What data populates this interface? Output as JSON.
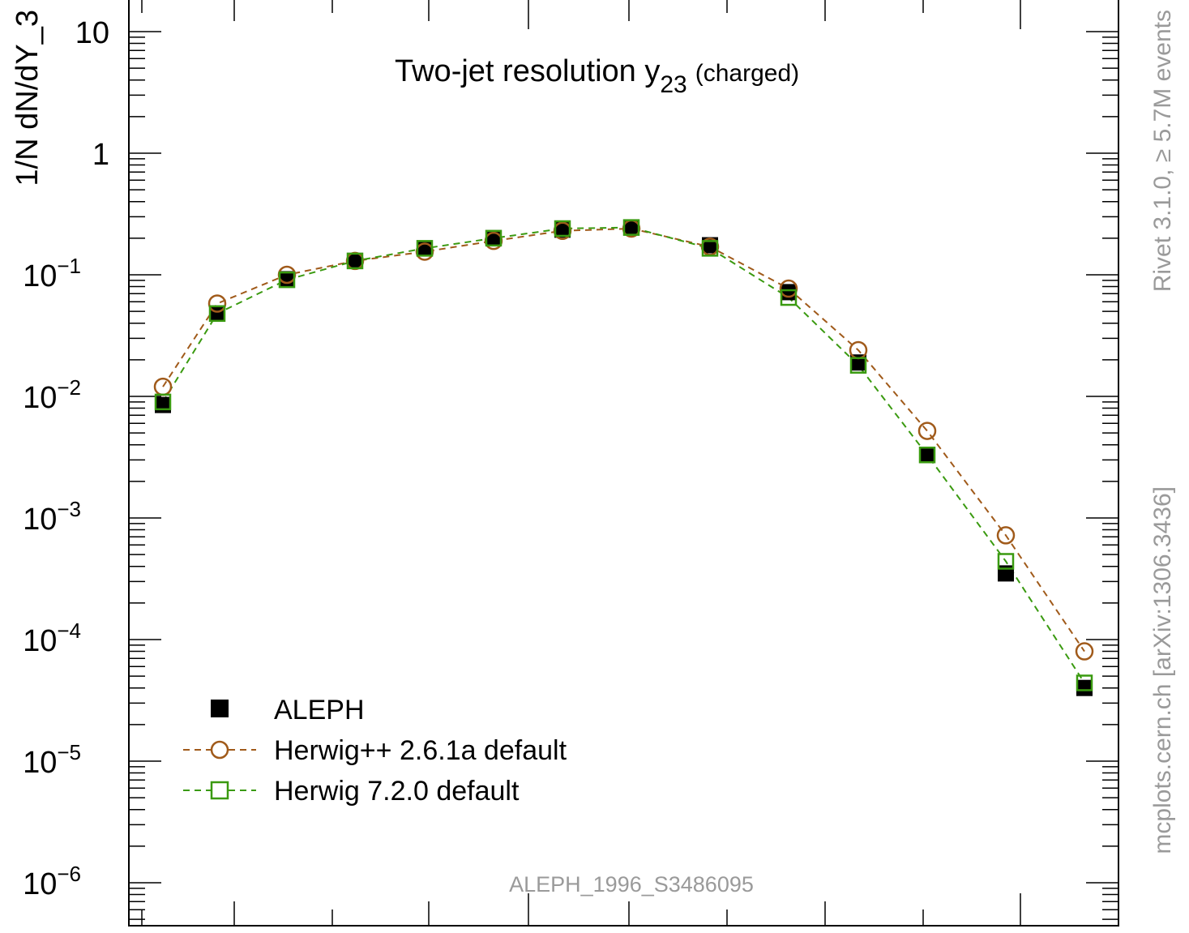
{
  "chart_data": {
    "type": "scatter",
    "title": "Two-jet resolution y",
    "title_subscript": "23",
    "title_suffix": "(charged)",
    "ylabel": "1/N dN/dY_3",
    "y_scale": "log",
    "ylim": [
      5.5e-07,
      15
    ],
    "y_ticks": [
      {
        "value": 10,
        "base": "10",
        "exp": ""
      },
      {
        "value": 1,
        "base": "1",
        "exp": ""
      },
      {
        "value": 0.1,
        "base": "10",
        "exp": "−1"
      },
      {
        "value": 0.01,
        "base": "10",
        "exp": "−2"
      },
      {
        "value": 0.001,
        "base": "10",
        "exp": "−3"
      },
      {
        "value": 0.0001,
        "base": "10",
        "exp": "−4"
      },
      {
        "value": 1e-05,
        "base": "10",
        "exp": "−5"
      },
      {
        "value": 1e-06,
        "base": "10",
        "exp": "−6"
      }
    ],
    "x_bin_count": 13,
    "legend_position": "bottom-left",
    "series": [
      {
        "name": "ALEPH",
        "marker": "filled-square",
        "color": "#000000",
        "values": [
          0.0085,
          0.048,
          0.092,
          0.13,
          0.165,
          0.2,
          0.235,
          0.245,
          0.175,
          0.072,
          0.019,
          0.0033,
          0.00035,
          4e-05
        ]
      },
      {
        "name": "Herwig++ 2.6.1a default",
        "marker": "open-circle",
        "color": "#a05a1a",
        "line": "dashed",
        "values": [
          0.012,
          0.058,
          0.1,
          0.13,
          0.155,
          0.19,
          0.23,
          0.24,
          0.17,
          0.077,
          0.024,
          0.0052,
          0.00072,
          8e-05
        ]
      },
      {
        "name": "Herwig 7.2.0 default",
        "marker": "open-square",
        "color": "#3a9a10",
        "line": "dashed",
        "values": [
          0.009,
          0.048,
          0.091,
          0.13,
          0.165,
          0.2,
          0.24,
          0.245,
          0.165,
          0.065,
          0.018,
          0.0033,
          0.00044,
          4.4e-05
        ]
      }
    ],
    "annotations": {
      "analysis": "ALEPH_1996_S3486095",
      "side_top": "Rivet 3.1.0, ≥ 5.7M events",
      "side_bottom": "mcplots.cern.ch [arXiv:1306.3436]"
    }
  },
  "colors": {
    "axis": "#000000",
    "side_text": "#9a9a9a"
  }
}
